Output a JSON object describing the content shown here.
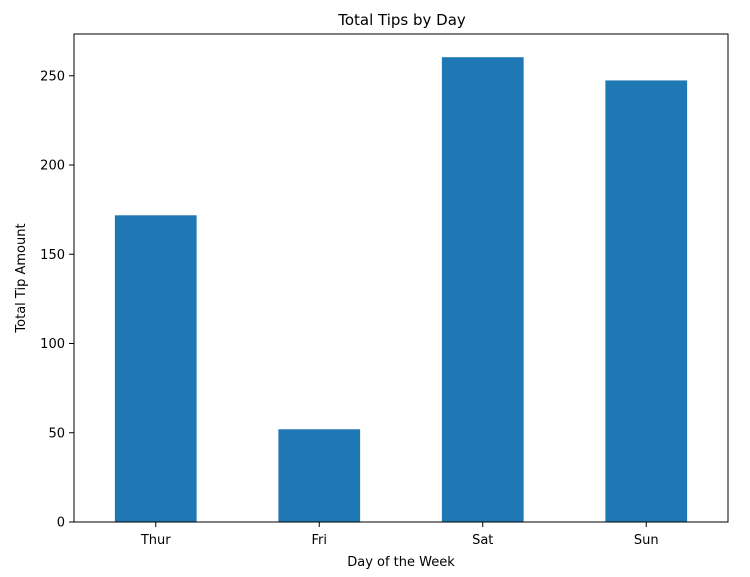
{
  "chart_data": {
    "type": "bar",
    "title": "Total Tips by Day",
    "xlabel": "Day of the Week",
    "ylabel": "Total Tip Amount",
    "categories": [
      "Thur",
      "Fri",
      "Sat",
      "Sun"
    ],
    "values": [
      171.83,
      51.96,
      260.4,
      247.39
    ],
    "ylim": [
      0,
      273.4
    ],
    "yticks": [
      0,
      50,
      100,
      150,
      200,
      250
    ],
    "bar_color": "#1f77b4",
    "grid": false,
    "legend": false
  }
}
